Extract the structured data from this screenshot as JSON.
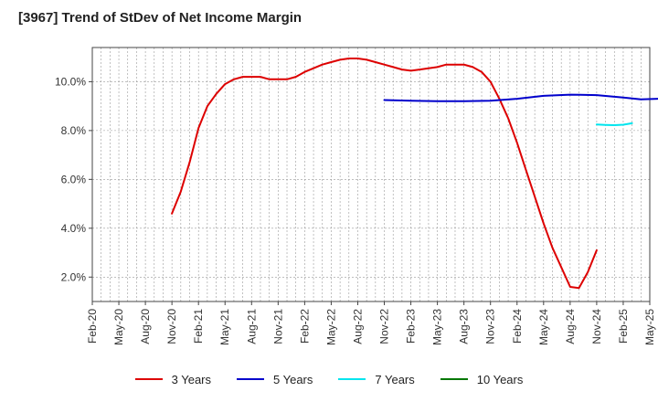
{
  "title": "[3967]  Trend of StDev of Net Income Margin",
  "chart_data": {
    "type": "line",
    "title": "[3967]  Trend of StDev of Net Income Margin",
    "xlabel": "",
    "ylabel": "",
    "x_ticks": [
      "Feb-20",
      "May-20",
      "Aug-20",
      "Nov-20",
      "Feb-21",
      "May-21",
      "Aug-21",
      "Nov-21",
      "Feb-22",
      "May-22",
      "Aug-22",
      "Nov-22",
      "Feb-23",
      "May-23",
      "Aug-23",
      "Nov-23",
      "Feb-24",
      "May-24",
      "Aug-24",
      "Nov-24",
      "Feb-25",
      "May-25"
    ],
    "y_ticks": [
      "2.0%",
      "4.0%",
      "6.0%",
      "8.0%",
      "10.0%"
    ],
    "y_tick_values": [
      2,
      4,
      6,
      8,
      10
    ],
    "ylim": [
      1.0,
      11.4
    ],
    "grid": true,
    "legend_position": "bottom",
    "series": [
      {
        "name": "3 Years",
        "color": "#dd0000",
        "points": [
          [
            "Nov-20",
            4.6
          ],
          [
            "Dec-20",
            5.5
          ],
          [
            "Jan-21",
            6.7
          ],
          [
            "Feb-21",
            8.1
          ],
          [
            "Mar-21",
            9.0
          ],
          [
            "Apr-21",
            9.5
          ],
          [
            "May-21",
            9.9
          ],
          [
            "Jun-21",
            10.1
          ],
          [
            "Jul-21",
            10.2
          ],
          [
            "Aug-21",
            10.2
          ],
          [
            "Sep-21",
            10.2
          ],
          [
            "Oct-21",
            10.1
          ],
          [
            "Nov-21",
            10.1
          ],
          [
            "Dec-21",
            10.1
          ],
          [
            "Jan-22",
            10.2
          ],
          [
            "Feb-22",
            10.4
          ],
          [
            "Mar-22",
            10.55
          ],
          [
            "Apr-22",
            10.7
          ],
          [
            "May-22",
            10.8
          ],
          [
            "Jun-22",
            10.9
          ],
          [
            "Jul-22",
            10.95
          ],
          [
            "Aug-22",
            10.95
          ],
          [
            "Sep-22",
            10.9
          ],
          [
            "Oct-22",
            10.8
          ],
          [
            "Nov-22",
            10.7
          ],
          [
            "Dec-22",
            10.6
          ],
          [
            "Jan-23",
            10.5
          ],
          [
            "Feb-23",
            10.45
          ],
          [
            "Mar-23",
            10.5
          ],
          [
            "Apr-23",
            10.55
          ],
          [
            "May-23",
            10.6
          ],
          [
            "Jun-23",
            10.7
          ],
          [
            "Jul-23",
            10.7
          ],
          [
            "Aug-23",
            10.7
          ],
          [
            "Sep-23",
            10.6
          ],
          [
            "Oct-23",
            10.4
          ],
          [
            "Nov-23",
            10.0
          ],
          [
            "Dec-23",
            9.3
          ],
          [
            "Jan-24",
            8.5
          ],
          [
            "Feb-24",
            7.5
          ],
          [
            "Mar-24",
            6.4
          ],
          [
            "Apr-24",
            5.3
          ],
          [
            "May-24",
            4.2
          ],
          [
            "Jun-24",
            3.2
          ],
          [
            "Jul-24",
            2.4
          ],
          [
            "Aug-24",
            1.6
          ],
          [
            "Sep-24",
            1.55
          ],
          [
            "Oct-24",
            2.2
          ],
          [
            "Nov-24",
            3.1
          ]
        ]
      },
      {
        "name": "5 Years",
        "color": "#0000cc",
        "points": [
          [
            "Nov-22",
            9.25
          ],
          [
            "Feb-23",
            9.22
          ],
          [
            "May-23",
            9.2
          ],
          [
            "Aug-23",
            9.2
          ],
          [
            "Nov-23",
            9.22
          ],
          [
            "Feb-24",
            9.3
          ],
          [
            "May-24",
            9.42
          ],
          [
            "Aug-24",
            9.47
          ],
          [
            "Nov-24",
            9.45
          ],
          [
            "Feb-25",
            9.35
          ],
          [
            "Apr-25",
            9.28
          ],
          [
            "Jun-25",
            9.3
          ]
        ]
      },
      {
        "name": "7 Years",
        "color": "#00e5ee",
        "points": [
          [
            "Nov-24",
            8.25
          ],
          [
            "Dec-24",
            8.23
          ],
          [
            "Jan-25",
            8.22
          ],
          [
            "Feb-25",
            8.24
          ],
          [
            "Mar-25",
            8.3
          ]
        ]
      },
      {
        "name": "10 Years",
        "color": "#007700",
        "points": []
      }
    ]
  }
}
